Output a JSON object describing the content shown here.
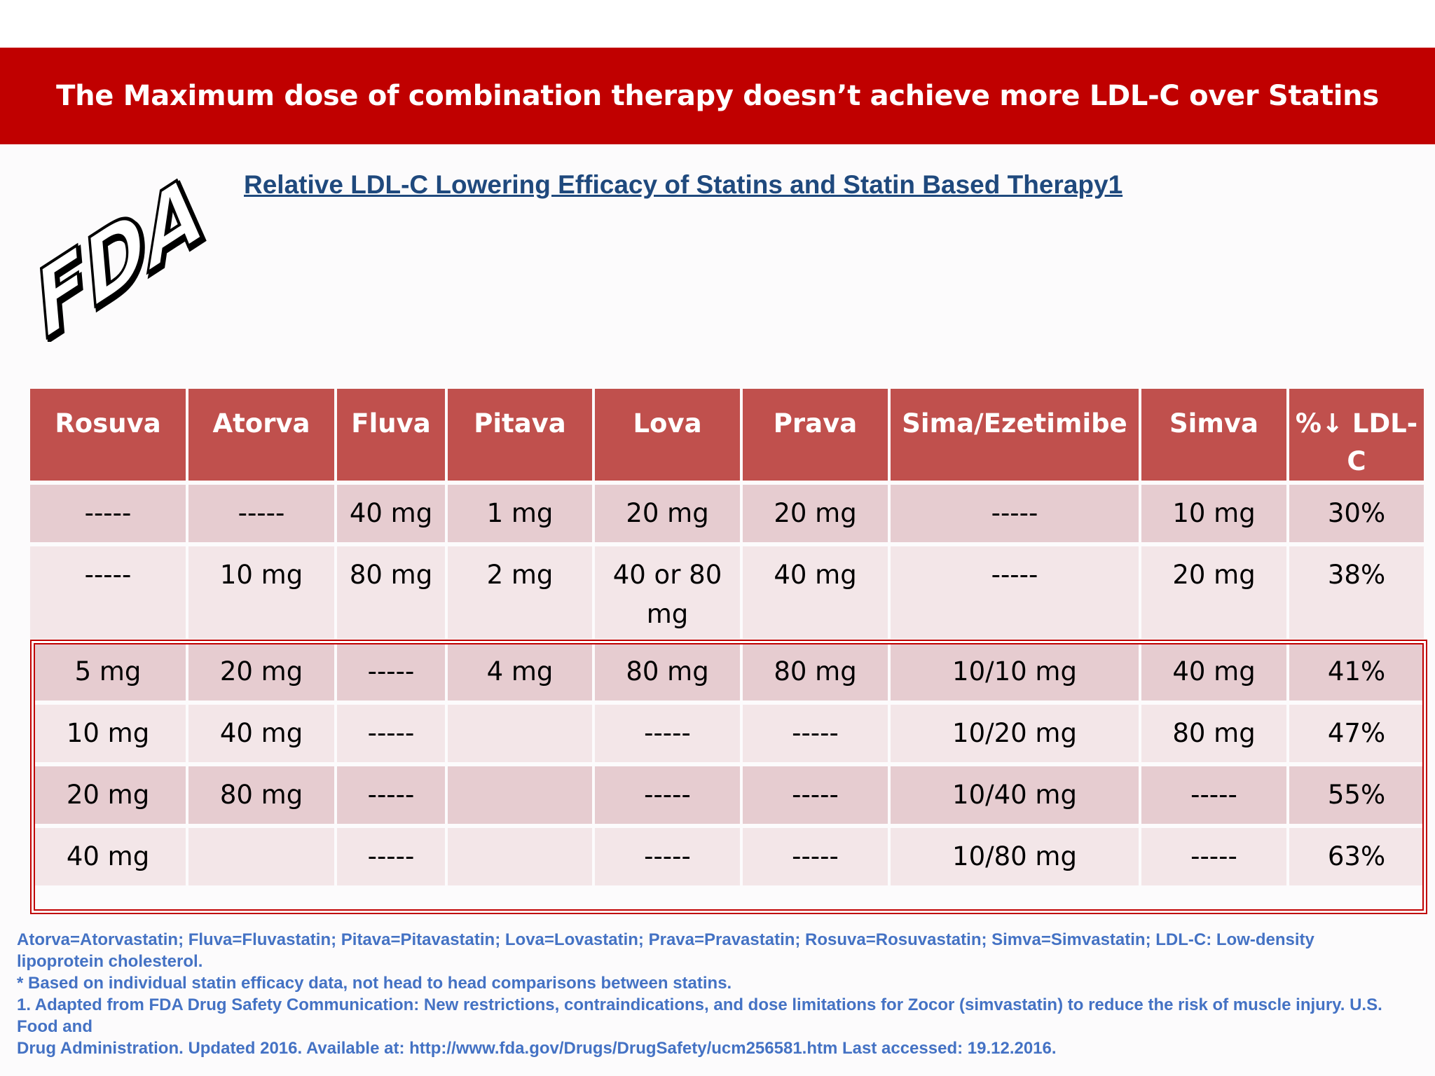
{
  "banner": {
    "title": "The Maximum dose of combination therapy doesn’t achieve more LDL-C over Statins",
    "color": "#c00000"
  },
  "logo": {
    "icon": "fda-logo",
    "text": "FDA"
  },
  "subtitle": "Relative LDL-C Lowering Efficacy of Statins and Statin Based Therapy1",
  "table": {
    "headers": [
      "Rosuva",
      "Atorva",
      "Fluva",
      "Pitava",
      "Lova",
      "Prava",
      "Sima/Ezetimibe",
      "Simva",
      "%↓ LDL-C"
    ],
    "rows": [
      [
        "-----",
        "-----",
        "40 mg",
        "1 mg",
        "20 mg",
        "20 mg",
        "-----",
        "10 mg",
        "30%"
      ],
      [
        "-----",
        "10 mg",
        "80 mg",
        "2 mg",
        "40 or 80 mg",
        "40 mg",
        "-----",
        "20 mg",
        "38%"
      ],
      [
        "5 mg",
        "20 mg",
        "-----",
        "4 mg",
        "80 mg",
        "80 mg",
        "10/10 mg",
        "40 mg",
        "41%"
      ],
      [
        "10 mg",
        "40 mg",
        "-----",
        "",
        "-----",
        "-----",
        "10/20 mg",
        "80 mg",
        "47%"
      ],
      [
        "20 mg",
        "80 mg",
        "-----",
        "",
        "-----",
        "-----",
        "10/40 mg",
        "-----",
        "55%"
      ],
      [
        "40 mg",
        "",
        "-----",
        "",
        "-----",
        "-----",
        "10/80 mg",
        "-----",
        "63%"
      ]
    ],
    "header_color": "#c0504d",
    "row_color_a": "#e6ccd0",
    "row_color_b": "#f3e6e8"
  },
  "footnotes": [
    "Atorva=Atorvastatin; Fluva=Fluvastatin; Pitava=Pitavastatin; Lova=Lovastatin; Prava=Pravastatin; Rosuva=Rosuvastatin; Simva=Simvastatin; LDL-C: Low-density lipoprotein cholesterol.",
    "* Based on individual statin efficacy data, not head to head comparisons between statins.",
    "1. Adapted from FDA Drug Safety Communication: New restrictions, contraindications, and dose limitations for Zocor (simvastatin) to reduce the risk of muscle injury. U.S. Food and",
    "Drug Administration. Updated 2016. Available at: http://www.fda.gov/Drugs/DrugSafety/ucm256581.htm Last accessed: 19.12.2016."
  ]
}
